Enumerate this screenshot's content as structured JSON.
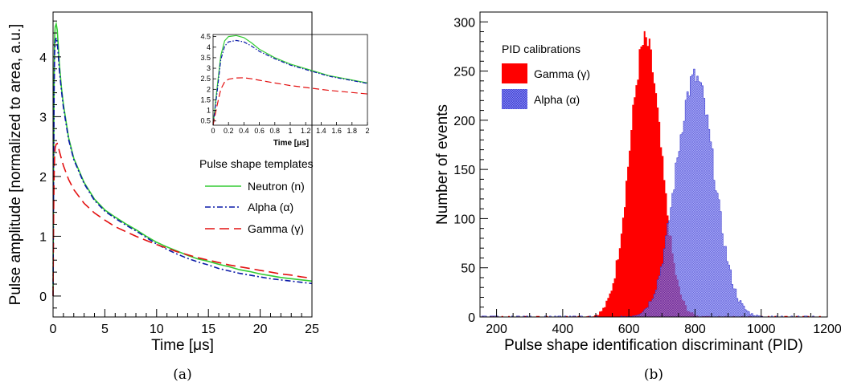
{
  "captions": {
    "a": "(a)",
    "b": "(b)"
  },
  "chart_data": [
    {
      "id": "a",
      "type": "line",
      "xlabel": "Time [μs]",
      "ylabel": "Pulse amplitude [normalized to area, a.u.]",
      "xlim": [
        0,
        25
      ],
      "ylim": [
        -0.35,
        4.75
      ],
      "xticks": [
        0,
        5,
        10,
        15,
        20,
        25
      ],
      "yticks": [
        0,
        1,
        2,
        3,
        4
      ],
      "legend": {
        "title": "Pulse shape templates",
        "position": "right"
      },
      "series": [
        {
          "name": "Neutron (n)",
          "color": "#33cc33",
          "dash": "solid",
          "x": [
            0,
            0.05,
            0.1,
            0.15,
            0.2,
            0.3,
            0.4,
            0.5,
            0.6,
            0.8,
            1.0,
            1.5,
            2,
            3,
            4,
            5,
            6,
            7,
            8,
            9,
            10,
            11,
            12,
            13,
            14,
            15,
            16,
            17,
            18,
            19,
            20,
            21,
            22,
            23,
            24,
            25
          ],
          "y": [
            0,
            2.0,
            3.6,
            4.3,
            4.5,
            4.55,
            4.45,
            4.2,
            3.9,
            3.5,
            3.2,
            2.65,
            2.3,
            1.9,
            1.62,
            1.44,
            1.32,
            1.21,
            1.11,
            1.0,
            0.9,
            0.82,
            0.75,
            0.68,
            0.62,
            0.58,
            0.53,
            0.49,
            0.44,
            0.41,
            0.37,
            0.34,
            0.31,
            0.29,
            0.27,
            0.25
          ]
        },
        {
          "name": "Alpha (α)",
          "color": "#0a1aa8",
          "dash": "dashdot",
          "x": [
            0,
            0.05,
            0.1,
            0.15,
            0.2,
            0.3,
            0.4,
            0.5,
            0.6,
            0.8,
            1.0,
            1.5,
            2,
            3,
            4,
            5,
            6,
            7,
            8,
            9,
            10,
            11,
            12,
            13,
            14,
            15,
            16,
            17,
            18,
            19,
            20,
            21,
            22,
            23,
            24,
            25
          ],
          "y": [
            0,
            1.8,
            3.4,
            4.05,
            4.25,
            4.32,
            4.25,
            4.05,
            3.8,
            3.45,
            3.15,
            2.62,
            2.28,
            1.88,
            1.6,
            1.42,
            1.3,
            1.19,
            1.09,
            0.98,
            0.87,
            0.78,
            0.7,
            0.63,
            0.57,
            0.52,
            0.46,
            0.42,
            0.38,
            0.35,
            0.32,
            0.29,
            0.27,
            0.25,
            0.23,
            0.21
          ]
        },
        {
          "name": "Gamma (γ)",
          "color": "#e31010",
          "dash": "dashed",
          "x": [
            0,
            0.05,
            0.1,
            0.15,
            0.2,
            0.3,
            0.4,
            0.5,
            0.6,
            0.8,
            1.0,
            1.5,
            2,
            3,
            4,
            5,
            6,
            7,
            8,
            9,
            10,
            11,
            12,
            13,
            14,
            15,
            16,
            17,
            18,
            19,
            20,
            21,
            22,
            23,
            24,
            25
          ],
          "y": [
            0,
            1.2,
            2.0,
            2.35,
            2.48,
            2.54,
            2.55,
            2.5,
            2.43,
            2.3,
            2.18,
            1.95,
            1.78,
            1.55,
            1.39,
            1.27,
            1.16,
            1.08,
            1.0,
            0.93,
            0.86,
            0.8,
            0.74,
            0.69,
            0.64,
            0.6,
            0.56,
            0.52,
            0.49,
            0.46,
            0.43,
            0.4,
            0.37,
            0.35,
            0.32,
            0.3
          ]
        }
      ],
      "inset": {
        "xlabel": "Time [μs]",
        "xlim": [
          0,
          2
        ],
        "ylim": [
          0.3,
          4.6
        ],
        "xticks": [
          0,
          0.2,
          0.4,
          0.6,
          0.8,
          1,
          1.2,
          1.4,
          1.6,
          1.8,
          2
        ],
        "yticks": [
          0.5,
          1,
          1.5,
          2,
          2.5,
          3,
          3.5,
          4,
          4.5
        ]
      }
    },
    {
      "id": "b",
      "type": "bar",
      "xlabel": "Pulse shape identification discriminant (PID)",
      "ylabel": "Number of events",
      "xlim": [
        150,
        1200
      ],
      "ylim": [
        0,
        310
      ],
      "xticks": [
        200,
        400,
        600,
        800,
        1000,
        1200
      ],
      "yticks": [
        0,
        50,
        100,
        150,
        200,
        250,
        300
      ],
      "legend": {
        "title": "PID calibrations",
        "position": "top-left"
      },
      "series": [
        {
          "name": "Gamma (γ)",
          "color": "#ff0000",
          "shape": "gaussian",
          "mean": 650,
          "sigma": 48,
          "peak": 280
        },
        {
          "name": "Alpha (α)",
          "color": "#5555ee",
          "shape": "gaussian",
          "mean": 800,
          "sigma": 58,
          "peak": 243
        }
      ]
    }
  ]
}
